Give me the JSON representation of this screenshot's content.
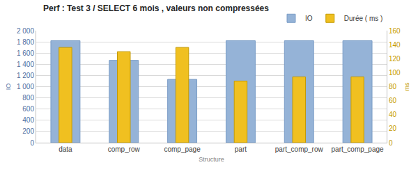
{
  "chart_data": {
    "type": "bar",
    "title": "Perf : Test 3 / SELECT 6 mois , valeurs non compressées",
    "x_label": "Structure",
    "y_label": "IO",
    "y2_label": "ms",
    "categories": [
      "data",
      "comp_row",
      "comp_page",
      "part",
      "part_comp_row",
      "part_comp_page"
    ],
    "series": [
      {
        "name": "IO",
        "color": "#95b3d7",
        "values": [
          1820,
          1470,
          1130,
          1820,
          1820,
          1820
        ]
      },
      {
        "name": "Durée ( ms )",
        "color": "#f0c020",
        "axis": "y2",
        "values": [
          136,
          130,
          136,
          88,
          94,
          94
        ]
      }
    ],
    "ylim": [
      0,
      2000
    ],
    "yticks": [
      0,
      200,
      400,
      600,
      800,
      {
        "value": 1000,
        "label": "1 000"
      },
      {
        "value": 1200,
        "label": "1 200"
      },
      {
        "value": 1400,
        "label": "1 400"
      },
      {
        "value": 1600,
        "label": "1 600"
      },
      {
        "value": 1800,
        "label": "1 800"
      },
      {
        "value": 2000,
        "label": "2 000"
      }
    ],
    "y2lim": [
      0,
      160
    ],
    "y2ticks": [
      0,
      20,
      40,
      60,
      80,
      100,
      120,
      140,
      160
    ],
    "grid": true,
    "legend": "top right"
  }
}
